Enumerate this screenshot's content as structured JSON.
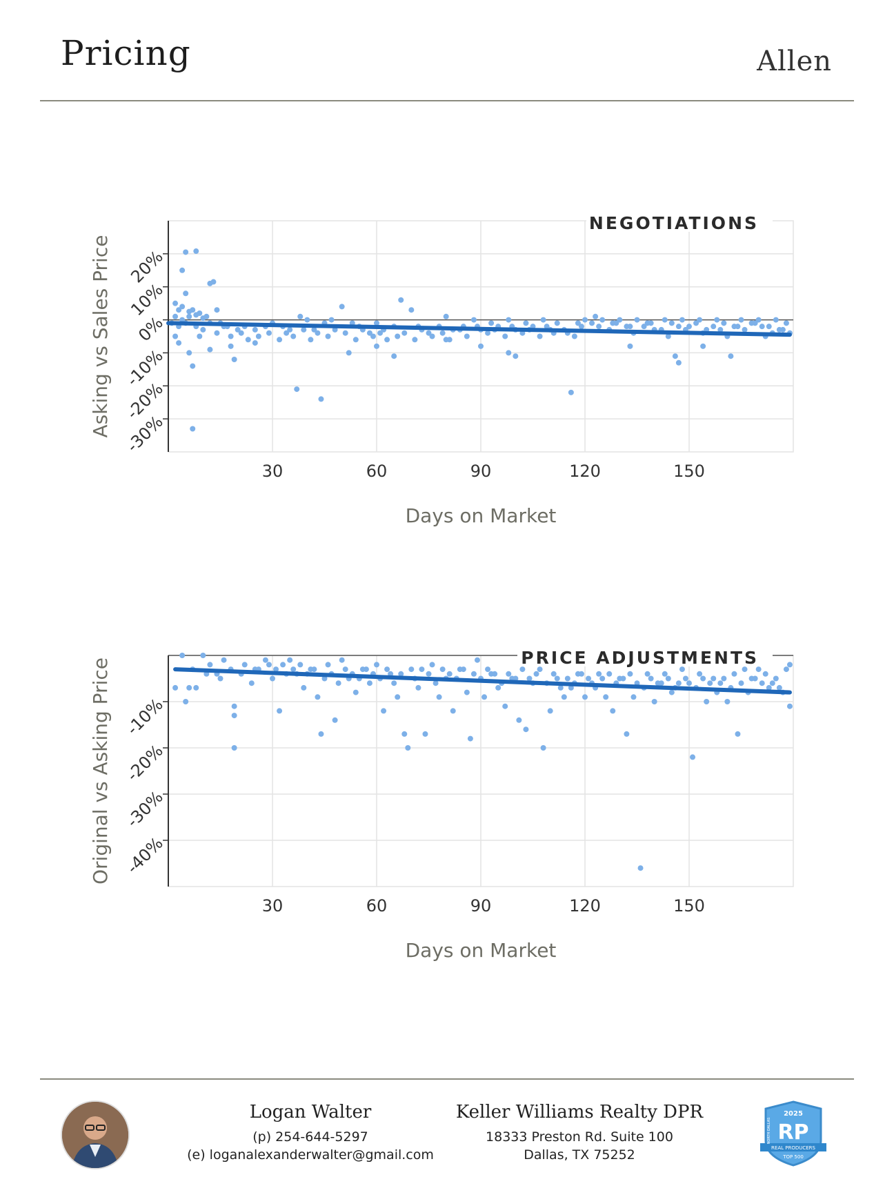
{
  "header": {
    "title": "Pricing",
    "area": "Allen"
  },
  "colors": {
    "points": "#7db0e8",
    "trend": "#1f67b8",
    "grid": "#e3e3e3",
    "rule": "#8a8a7e",
    "text": "#333333",
    "axis_label": "#6d6d64"
  },
  "chart_data": [
    {
      "type": "scatter",
      "title": "NEGOTIATIONS",
      "xlabel": "Days on Market",
      "ylabel": "Asking vs Sales Price",
      "xlim": [
        0,
        180
      ],
      "ylim": [
        -40,
        30
      ],
      "xticks": [
        "30",
        "60",
        "90",
        "120",
        "150"
      ],
      "xtick_values": [
        30,
        60,
        90,
        120,
        150
      ],
      "yticks": [
        "20%",
        "10%",
        "0%",
        "-10%",
        "-20%",
        "-30%"
      ],
      "ytick_values": [
        20,
        10,
        0,
        -10,
        -20,
        -30
      ],
      "grid": true,
      "trend": {
        "x": [
          0,
          179
        ],
        "y": [
          -1,
          -4.5
        ]
      },
      "points": [
        [
          5,
          20.5
        ],
        [
          8,
          20.8
        ],
        [
          4,
          15
        ],
        [
          13,
          11.5
        ],
        [
          12,
          11
        ],
        [
          5,
          8
        ],
        [
          2,
          5
        ],
        [
          3,
          3
        ],
        [
          4,
          4
        ],
        [
          6,
          2.5
        ],
        [
          7,
          3
        ],
        [
          8,
          1.5
        ],
        [
          9,
          2
        ],
        [
          10,
          0.5
        ],
        [
          11,
          1
        ],
        [
          14,
          3
        ],
        [
          15,
          -1
        ],
        [
          17,
          -2
        ],
        [
          20,
          -3
        ],
        [
          22,
          -2
        ],
        [
          25,
          -3
        ],
        [
          28,
          -2
        ],
        [
          30,
          -1
        ],
        [
          33,
          -2
        ],
        [
          35,
          -3
        ],
        [
          38,
          1
        ],
        [
          40,
          0
        ],
        [
          42,
          -3
        ],
        [
          45,
          -1
        ],
        [
          47,
          0
        ],
        [
          50,
          4
        ],
        [
          53,
          -1
        ],
        [
          55,
          -2
        ],
        [
          58,
          -4
        ],
        [
          60,
          -1
        ],
        [
          62,
          -3
        ],
        [
          65,
          -2
        ],
        [
          67,
          6
        ],
        [
          70,
          3
        ],
        [
          72,
          -2
        ],
        [
          75,
          -4
        ],
        [
          78,
          -2
        ],
        [
          80,
          1
        ],
        [
          82,
          -3
        ],
        [
          85,
          -2
        ],
        [
          88,
          0
        ],
        [
          90,
          -3
        ],
        [
          93,
          -1
        ],
        [
          95,
          -2
        ],
        [
          98,
          0
        ],
        [
          100,
          -3
        ],
        [
          103,
          -1
        ],
        [
          105,
          -2
        ],
        [
          108,
          0
        ],
        [
          110,
          -3
        ],
        [
          112,
          -1
        ],
        [
          115,
          -4
        ],
        [
          118,
          -1
        ],
        [
          120,
          0
        ],
        [
          123,
          1
        ],
        [
          125,
          0
        ],
        [
          128,
          -1
        ],
        [
          130,
          0
        ],
        [
          133,
          -2
        ],
        [
          135,
          0
        ],
        [
          138,
          -1
        ],
        [
          140,
          -3
        ],
        [
          143,
          0
        ],
        [
          145,
          -1
        ],
        [
          148,
          0
        ],
        [
          150,
          -2
        ],
        [
          153,
          0
        ],
        [
          155,
          -3
        ],
        [
          158,
          0
        ],
        [
          160,
          -1
        ],
        [
          163,
          -2
        ],
        [
          165,
          0
        ],
        [
          168,
          -1
        ],
        [
          170,
          0
        ],
        [
          173,
          -2
        ],
        [
          175,
          0
        ],
        [
          178,
          -1
        ],
        [
          6,
          -10
        ],
        [
          7,
          -14
        ],
        [
          2,
          -5
        ],
        [
          3,
          -7
        ],
        [
          9,
          -5
        ],
        [
          12,
          -9
        ],
        [
          18,
          -8
        ],
        [
          19,
          -12
        ],
        [
          25,
          -7
        ],
        [
          37,
          -21
        ],
        [
          44,
          -24
        ],
        [
          7,
          -33
        ],
        [
          52,
          -10
        ],
        [
          60,
          -8
        ],
        [
          65,
          -11
        ],
        [
          80,
          -6
        ],
        [
          90,
          -8
        ],
        [
          98,
          -10
        ],
        [
          100,
          -11
        ],
        [
          116,
          -22
        ],
        [
          133,
          -8
        ],
        [
          146,
          -11
        ],
        [
          147,
          -13
        ],
        [
          154,
          -8
        ],
        [
          162,
          -11
        ],
        [
          172,
          -5
        ],
        [
          176,
          -3
        ],
        [
          179,
          -4
        ],
        [
          1,
          -1
        ],
        [
          2,
          1
        ],
        [
          3,
          -2
        ],
        [
          4,
          0
        ],
        [
          5,
          -1
        ],
        [
          6,
          1
        ],
        [
          8,
          -2
        ],
        [
          10,
          -3
        ],
        [
          12,
          -1
        ],
        [
          14,
          -4
        ],
        [
          16,
          -2
        ],
        [
          18,
          -5
        ],
        [
          21,
          -4
        ],
        [
          23,
          -6
        ],
        [
          26,
          -5
        ],
        [
          29,
          -4
        ],
        [
          32,
          -6
        ],
        [
          34,
          -4
        ],
        [
          36,
          -5
        ],
        [
          39,
          -3
        ],
        [
          41,
          -6
        ],
        [
          43,
          -4
        ],
        [
          46,
          -5
        ],
        [
          48,
          -3
        ],
        [
          51,
          -4
        ],
        [
          54,
          -6
        ],
        [
          56,
          -3
        ],
        [
          59,
          -5
        ],
        [
          61,
          -4
        ],
        [
          63,
          -6
        ],
        [
          66,
          -5
        ],
        [
          68,
          -4
        ],
        [
          71,
          -6
        ],
        [
          73,
          -3
        ],
        [
          76,
          -5
        ],
        [
          79,
          -4
        ],
        [
          81,
          -6
        ],
        [
          84,
          -3
        ],
        [
          86,
          -5
        ],
        [
          89,
          -2
        ],
        [
          92,
          -4
        ],
        [
          94,
          -3
        ],
        [
          97,
          -5
        ],
        [
          99,
          -2
        ],
        [
          102,
          -4
        ],
        [
          104,
          -3
        ],
        [
          107,
          -5
        ],
        [
          109,
          -2
        ],
        [
          111,
          -4
        ],
        [
          114,
          -3
        ],
        [
          117,
          -5
        ],
        [
          119,
          -2
        ],
        [
          122,
          -1
        ],
        [
          124,
          -2
        ],
        [
          127,
          -3
        ],
        [
          129,
          -1
        ],
        [
          132,
          -2
        ],
        [
          134,
          -4
        ],
        [
          137,
          -2
        ],
        [
          139,
          -1
        ],
        [
          142,
          -3
        ],
        [
          144,
          -5
        ],
        [
          147,
          -2
        ],
        [
          149,
          -3
        ],
        [
          152,
          -1
        ],
        [
          154,
          -4
        ],
        [
          157,
          -2
        ],
        [
          159,
          -3
        ],
        [
          161,
          -5
        ],
        [
          164,
          -2
        ],
        [
          166,
          -3
        ],
        [
          169,
          -1
        ],
        [
          171,
          -2
        ],
        [
          174,
          -4
        ],
        [
          177,
          -3
        ]
      ]
    },
    {
      "type": "scatter",
      "title": "PRICE ADJUSTMENTS",
      "xlabel": "Days on Market",
      "ylabel": "Original vs Asking Price",
      "xlim": [
        0,
        180
      ],
      "ylim": [
        -50,
        0
      ],
      "xticks": [
        "30",
        "60",
        "90",
        "120",
        "150"
      ],
      "xtick_values": [
        30,
        60,
        90,
        120,
        150
      ],
      "yticks": [
        "-10%",
        "-20%",
        "-30%",
        "-40%"
      ],
      "ytick_values": [
        -10,
        -20,
        -30,
        -40
      ],
      "grid": true,
      "trend": {
        "x": [
          2,
          179
        ],
        "y": [
          -3,
          -8
        ]
      },
      "points": [
        [
          2,
          -7
        ],
        [
          4,
          0
        ],
        [
          5,
          -10
        ],
        [
          6,
          -7
        ],
        [
          8,
          -7
        ],
        [
          10,
          0
        ],
        [
          12,
          -2
        ],
        [
          14,
          -4
        ],
        [
          16,
          -1
        ],
        [
          18,
          -3
        ],
        [
          19,
          -11
        ],
        [
          19,
          -13
        ],
        [
          19,
          -20
        ],
        [
          22,
          -2
        ],
        [
          24,
          -6
        ],
        [
          26,
          -3
        ],
        [
          28,
          -1
        ],
        [
          30,
          -5
        ],
        [
          32,
          -12
        ],
        [
          33,
          -2
        ],
        [
          35,
          -1
        ],
        [
          37,
          -4
        ],
        [
          39,
          -7
        ],
        [
          41,
          -3
        ],
        [
          43,
          -9
        ],
        [
          44,
          -17
        ],
        [
          46,
          -2
        ],
        [
          48,
          -14
        ],
        [
          50,
          -1
        ],
        [
          52,
          -5
        ],
        [
          54,
          -8
        ],
        [
          56,
          -3
        ],
        [
          58,
          -6
        ],
        [
          60,
          -2
        ],
        [
          62,
          -12
        ],
        [
          64,
          -4
        ],
        [
          66,
          -9
        ],
        [
          68,
          -17
        ],
        [
          69,
          -20
        ],
        [
          70,
          -3
        ],
        [
          72,
          -7
        ],
        [
          74,
          -17
        ],
        [
          76,
          -2
        ],
        [
          78,
          -9
        ],
        [
          80,
          -5
        ],
        [
          82,
          -12
        ],
        [
          84,
          -3
        ],
        [
          86,
          -8
        ],
        [
          87,
          -18
        ],
        [
          89,
          -1
        ],
        [
          91,
          -9
        ],
        [
          93,
          -4
        ],
        [
          95,
          -7
        ],
        [
          97,
          -11
        ],
        [
          99,
          -5
        ],
        [
          101,
          -14
        ],
        [
          103,
          -16
        ],
        [
          105,
          -6
        ],
        [
          107,
          -3
        ],
        [
          108,
          -20
        ],
        [
          110,
          -12
        ],
        [
          112,
          -5
        ],
        [
          114,
          -9
        ],
        [
          116,
          -7
        ],
        [
          118,
          -4
        ],
        [
          120,
          -9
        ],
        [
          122,
          -6
        ],
        [
          124,
          -4
        ],
        [
          126,
          -9
        ],
        [
          128,
          -12
        ],
        [
          130,
          -5
        ],
        [
          132,
          -17
        ],
        [
          134,
          -9
        ],
        [
          136,
          -46
        ],
        [
          138,
          -4
        ],
        [
          140,
          -10
        ],
        [
          142,
          -6
        ],
        [
          144,
          -5
        ],
        [
          146,
          -7
        ],
        [
          148,
          -3
        ],
        [
          150,
          -6
        ],
        [
          151,
          -22
        ],
        [
          153,
          -4
        ],
        [
          155,
          -10
        ],
        [
          157,
          -5
        ],
        [
          159,
          -6
        ],
        [
          161,
          -10
        ],
        [
          163,
          -4
        ],
        [
          164,
          -17
        ],
        [
          166,
          -3
        ],
        [
          168,
          -5
        ],
        [
          170,
          -3
        ],
        [
          172,
          -4
        ],
        [
          174,
          -6
        ],
        [
          176,
          -7
        ],
        [
          178,
          -3
        ],
        [
          179,
          -11
        ],
        [
          179,
          -2
        ],
        [
          7,
          -3
        ],
        [
          11,
          -4
        ],
        [
          15,
          -5
        ],
        [
          21,
          -4
        ],
        [
          25,
          -3
        ],
        [
          29,
          -2
        ],
        [
          31,
          -3
        ],
        [
          34,
          -4
        ],
        [
          36,
          -3
        ],
        [
          38,
          -2
        ],
        [
          40,
          -4
        ],
        [
          42,
          -3
        ],
        [
          45,
          -5
        ],
        [
          47,
          -4
        ],
        [
          49,
          -6
        ],
        [
          51,
          -3
        ],
        [
          53,
          -4
        ],
        [
          55,
          -5
        ],
        [
          57,
          -3
        ],
        [
          59,
          -4
        ],
        [
          61,
          -5
        ],
        [
          63,
          -3
        ],
        [
          65,
          -6
        ],
        [
          67,
          -4
        ],
        [
          71,
          -5
        ],
        [
          73,
          -3
        ],
        [
          75,
          -4
        ],
        [
          77,
          -6
        ],
        [
          79,
          -3
        ],
        [
          81,
          -4
        ],
        [
          83,
          -5
        ],
        [
          85,
          -3
        ],
        [
          88,
          -4
        ],
        [
          90,
          -5
        ],
        [
          92,
          -3
        ],
        [
          94,
          -4
        ],
        [
          96,
          -6
        ],
        [
          98,
          -4
        ],
        [
          100,
          -5
        ],
        [
          102,
          -3
        ],
        [
          104,
          -5
        ],
        [
          106,
          -4
        ],
        [
          109,
          -6
        ],
        [
          111,
          -4
        ],
        [
          113,
          -7
        ],
        [
          115,
          -5
        ],
        [
          117,
          -6
        ],
        [
          119,
          -4
        ],
        [
          121,
          -5
        ],
        [
          123,
          -7
        ],
        [
          125,
          -5
        ],
        [
          127,
          -4
        ],
        [
          129,
          -6
        ],
        [
          131,
          -5
        ],
        [
          133,
          -4
        ],
        [
          135,
          -6
        ],
        [
          137,
          -7
        ],
        [
          139,
          -5
        ],
        [
          141,
          -6
        ],
        [
          143,
          -4
        ],
        [
          145,
          -8
        ],
        [
          147,
          -6
        ],
        [
          149,
          -5
        ],
        [
          152,
          -7
        ],
        [
          154,
          -5
        ],
        [
          156,
          -6
        ],
        [
          158,
          -8
        ],
        [
          160,
          -5
        ],
        [
          162,
          -7
        ],
        [
          165,
          -6
        ],
        [
          167,
          -8
        ],
        [
          169,
          -5
        ],
        [
          171,
          -6
        ],
        [
          173,
          -7
        ],
        [
          175,
          -5
        ],
        [
          177,
          -8
        ]
      ]
    }
  ],
  "footer": {
    "agent_name": "Logan Walter",
    "phone": "(p) 254-644-5297",
    "email": "(e) loganalexanderwalter@gmail.com",
    "company": "Keller Williams Realty DPR",
    "address1": "18333 Preston Rd. Suite 100",
    "address2": "Dallas, TX 75252",
    "badge_year": "2025",
    "badge_initials": "RP",
    "badge_text": "REAL PRODUCERS",
    "badge_sub": "TOP 500",
    "badge_region": "NORTH DALLAS"
  }
}
